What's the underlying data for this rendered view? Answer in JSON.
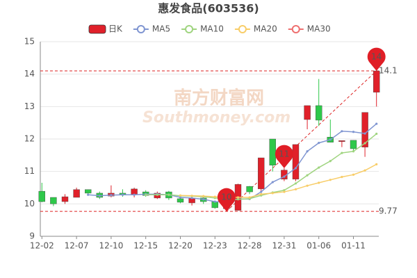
{
  "chart_data": {
    "type": "candlestick",
    "title": "惠发食品(603536)",
    "watermark": [
      "南方财富网",
      "Southmoney.com"
    ],
    "candle_name": "日K",
    "up_color": "#e0202a",
    "down_color": "#2ec84a",
    "categories": [
      "12-02",
      null,
      null,
      "12-07",
      null,
      null,
      "12-10",
      null,
      null,
      "12-15",
      null,
      null,
      "12-20",
      null,
      null,
      "12-23",
      null,
      null,
      "12-28",
      null,
      null,
      "12-31",
      null,
      null,
      "01-06",
      null,
      null,
      "01-11",
      null,
      null
    ],
    "open": [
      10.39,
      10.2,
      10.07,
      10.2,
      10.44,
      10.33,
      10.24,
      10.33,
      10.28,
      10.37,
      10.18,
      10.37,
      10.16,
      10.03,
      10.18,
      10.07,
      9.85,
      9.8,
      10.54,
      10.46,
      12.0,
      10.76,
      10.76,
      12.6,
      13.03,
      12.06,
      11.92,
      11.96,
      11.75,
      13.44
    ],
    "close": [
      10.07,
      10.0,
      10.22,
      10.44,
      10.33,
      10.2,
      10.33,
      10.27,
      10.46,
      10.26,
      10.33,
      10.18,
      10.05,
      10.18,
      10.07,
      9.88,
      10.05,
      10.6,
      10.37,
      11.42,
      11.19,
      11.04,
      11.83,
      13.03,
      12.58,
      11.9,
      11.95,
      11.7,
      12.82,
      14.1
    ],
    "high": [
      10.65,
      10.2,
      10.3,
      10.5,
      10.44,
      10.38,
      10.57,
      10.45,
      10.5,
      10.42,
      10.38,
      10.4,
      10.2,
      10.22,
      10.22,
      10.1,
      10.1,
      10.62,
      10.55,
      11.42,
      12.0,
      11.1,
      11.83,
      13.03,
      13.85,
      12.6,
      11.95,
      11.96,
      12.82,
      14.1
    ],
    "low": [
      10.05,
      9.93,
      10.0,
      10.2,
      10.28,
      10.15,
      10.2,
      10.22,
      10.2,
      10.22,
      10.15,
      10.12,
      10.02,
      9.95,
      10.0,
      9.85,
      9.77,
      9.8,
      10.3,
      10.4,
      11.0,
      10.7,
      10.7,
      12.3,
      12.4,
      11.9,
      11.75,
      11.6,
      11.45,
      13.0
    ],
    "series": [
      {
        "name": "MA5",
        "color": "#7f95d1",
        "values": [
          null,
          null,
          null,
          null,
          10.28,
          10.25,
          10.27,
          10.28,
          10.28,
          10.3,
          10.3,
          10.28,
          10.2,
          10.18,
          10.14,
          10.07,
          10.06,
          10.15,
          10.15,
          10.37,
          10.67,
          10.84,
          11.1,
          11.62,
          11.88,
          11.98,
          12.24,
          12.22,
          12.17,
          12.47
        ]
      },
      {
        "name": "MA10",
        "color": "#9fd47f",
        "values": [
          null,
          null,
          null,
          null,
          null,
          null,
          null,
          null,
          null,
          10.28,
          10.28,
          10.28,
          10.25,
          10.24,
          10.22,
          10.18,
          10.15,
          10.14,
          10.16,
          10.26,
          10.35,
          10.42,
          10.63,
          10.88,
          11.12,
          11.32,
          11.57,
          11.62,
          11.87,
          12.16
        ]
      },
      {
        "name": "MA20",
        "color": "#f8cd68",
        "values": [
          null,
          null,
          null,
          null,
          null,
          null,
          null,
          null,
          null,
          null,
          null,
          null,
          10.26,
          10.25,
          10.24,
          10.22,
          10.2,
          10.2,
          10.2,
          10.3,
          10.33,
          10.37,
          10.45,
          10.56,
          10.65,
          10.74,
          10.83,
          10.9,
          11.03,
          11.22
        ]
      },
      {
        "name": "MA30",
        "color": "#ee6f6f",
        "values": [
          null,
          null,
          null,
          null,
          null,
          null,
          null,
          null,
          null,
          null,
          null,
          null,
          null,
          null,
          null,
          null,
          null,
          null,
          null,
          null,
          null,
          null,
          null,
          null,
          null,
          null,
          null,
          null,
          null,
          null
        ]
      }
    ],
    "reference_lines": [
      14.1,
      9.77
    ],
    "markers": [
      {
        "index": 29,
        "value": 14.1,
        "label": "14"
      },
      {
        "index": 21,
        "value": 11.1,
        "label": "11"
      },
      {
        "index": 16,
        "value": 9.77,
        "label": "10"
      }
    ],
    "ylim": [
      9,
      15
    ],
    "yticks": [
      9,
      10,
      11,
      12,
      13,
      14,
      15
    ],
    "grid": true
  }
}
